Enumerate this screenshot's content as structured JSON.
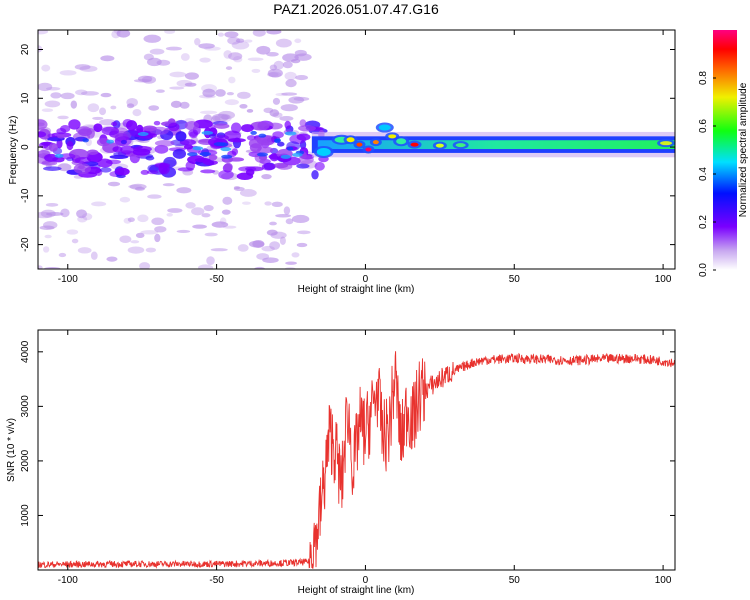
{
  "title": "PAZ1.2026.051.07.47.G16",
  "colors": {
    "snr_line": "#e8322e",
    "axis": "#000000",
    "background": "#ffffff"
  },
  "chart_data": [
    {
      "type": "heatmap",
      "title": "PAZ1.2026.051.07.47.G16",
      "xlabel": "Height of straight line (km)",
      "ylabel": "Frequency (Hz)",
      "xlim": [
        -110,
        104
      ],
      "ylim": [
        -25,
        24
      ],
      "xticks": [
        -100,
        -50,
        0,
        50,
        100
      ],
      "yticks": [
        -20,
        -10,
        0,
        10,
        20
      ],
      "colorbar": {
        "label": "Normalized spectral amplitude",
        "range": [
          0,
          1
        ],
        "ticks": [
          "0.0",
          "0.2",
          "0.4",
          "0.6",
          "0.8"
        ],
        "colormap": "rainbow (violet-blue-cyan-green-yellow-red-magenta)"
      },
      "features": {
        "noisy_region_x": [
          -110,
          -18
        ],
        "noisy_band_freq": [
          -6,
          5
        ],
        "signal_line_freq": 0.5,
        "signal_line_x": [
          -18,
          104
        ],
        "peak_amplitude_near_x": [
          -5,
          17
        ]
      }
    },
    {
      "type": "line",
      "xlabel": "Height of straight line (km)",
      "ylabel": "SNR (10 * v/v)",
      "xlim": [
        -110,
        104
      ],
      "ylim": [
        0,
        4400
      ],
      "xticks": [
        -100,
        -50,
        0,
        50,
        100
      ],
      "yticks": [
        1000,
        2000,
        3000,
        4000
      ],
      "series": [
        {
          "name": "SNR",
          "x": [
            -110,
            -80,
            -50,
            -25,
            -19,
            -15,
            -12,
            -10,
            -8,
            -6,
            -4,
            -2,
            0,
            2,
            4,
            6,
            8,
            10,
            12,
            14,
            16,
            18,
            20,
            24,
            28,
            32,
            36,
            40,
            50,
            60,
            70,
            80,
            90,
            100,
            104
          ],
          "y": [
            100,
            110,
            110,
            130,
            150,
            1100,
            2500,
            2200,
            1500,
            3000,
            1800,
            2700,
            2500,
            2900,
            3300,
            2400,
            2600,
            3600,
            2300,
            3000,
            2700,
            3200,
            3300,
            3450,
            3600,
            3700,
            3800,
            3850,
            3880,
            3860,
            3840,
            3870,
            3880,
            3830,
            3800
          ]
        }
      ]
    }
  ]
}
